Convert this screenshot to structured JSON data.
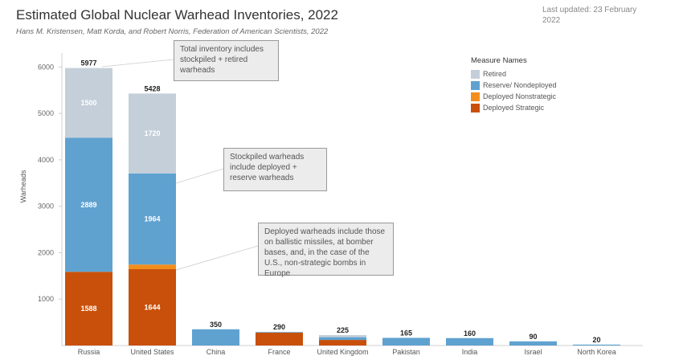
{
  "header": {
    "title": "Estimated Global Nuclear Warhead Inventories, 2022",
    "subtitle": "Hans M. Kristensen, Matt Korda, and Robert Norris, Federation of American Scientists, 2022",
    "updated": "Last updated: 23 February 2022"
  },
  "legend": {
    "title": "Measure Names",
    "items": [
      {
        "label": "Retired",
        "color": "#c5cfd9"
      },
      {
        "label": "Reserve/ Nondeployed",
        "color": "#5fa2d0"
      },
      {
        "label": "Deployed Nonstrategic",
        "color": "#f28e1c"
      },
      {
        "label": "Deployed Strategic",
        "color": "#c9500a"
      }
    ]
  },
  "annotations": {
    "total": "Total inventory includes stockpiled + retired warheads",
    "stockpiled": "Stockpiled warheads include deployed + reserve warheads",
    "deployed": "Deployed warheads include those on ballistic missiles, at bomber bases, and, in the case of the U.S., non-strategic bombs in Europe"
  },
  "chart_data": {
    "type": "bar",
    "stacked": true,
    "ylabel": "Warheads",
    "xlabel": "",
    "ylim": [
      0,
      6000
    ],
    "yticks": [
      1000,
      2000,
      3000,
      4000,
      5000,
      6000
    ],
    "grid": false,
    "categories": [
      "Russia",
      "United States",
      "China",
      "France",
      "United Kingdom",
      "Pakistan",
      "India",
      "Israel",
      "North Korea"
    ],
    "totals": [
      5977,
      5428,
      350,
      290,
      225,
      165,
      160,
      90,
      20
    ],
    "series": [
      {
        "name": "Deployed Strategic",
        "color": "#c9500a",
        "values": [
          1588,
          1644,
          0,
          280,
          120,
          0,
          0,
          0,
          0
        ],
        "labels": [
          "1588",
          "1644",
          "",
          "",
          "",
          "",
          "",
          "",
          ""
        ]
      },
      {
        "name": "Deployed Nonstrategic",
        "color": "#f28e1c",
        "values": [
          0,
          100,
          0,
          0,
          0,
          0,
          0,
          0,
          0
        ],
        "labels": [
          "",
          "",
          "",
          "",
          "",
          "",
          "",
          "",
          ""
        ]
      },
      {
        "name": "Reserve/ Nondeployed",
        "color": "#5fa2d0",
        "values": [
          2889,
          1964,
          350,
          10,
          60,
          165,
          160,
          90,
          20
        ],
        "labels": [
          "2889",
          "1964",
          "",
          "",
          "",
          "",
          "",
          "",
          ""
        ]
      },
      {
        "name": "Retired",
        "color": "#c5cfd9",
        "values": [
          1500,
          1720,
          0,
          0,
          45,
          0,
          0,
          0,
          0
        ],
        "labels": [
          "1500",
          "1720",
          "",
          "",
          "",
          "",
          "",
          "",
          ""
        ]
      }
    ]
  }
}
